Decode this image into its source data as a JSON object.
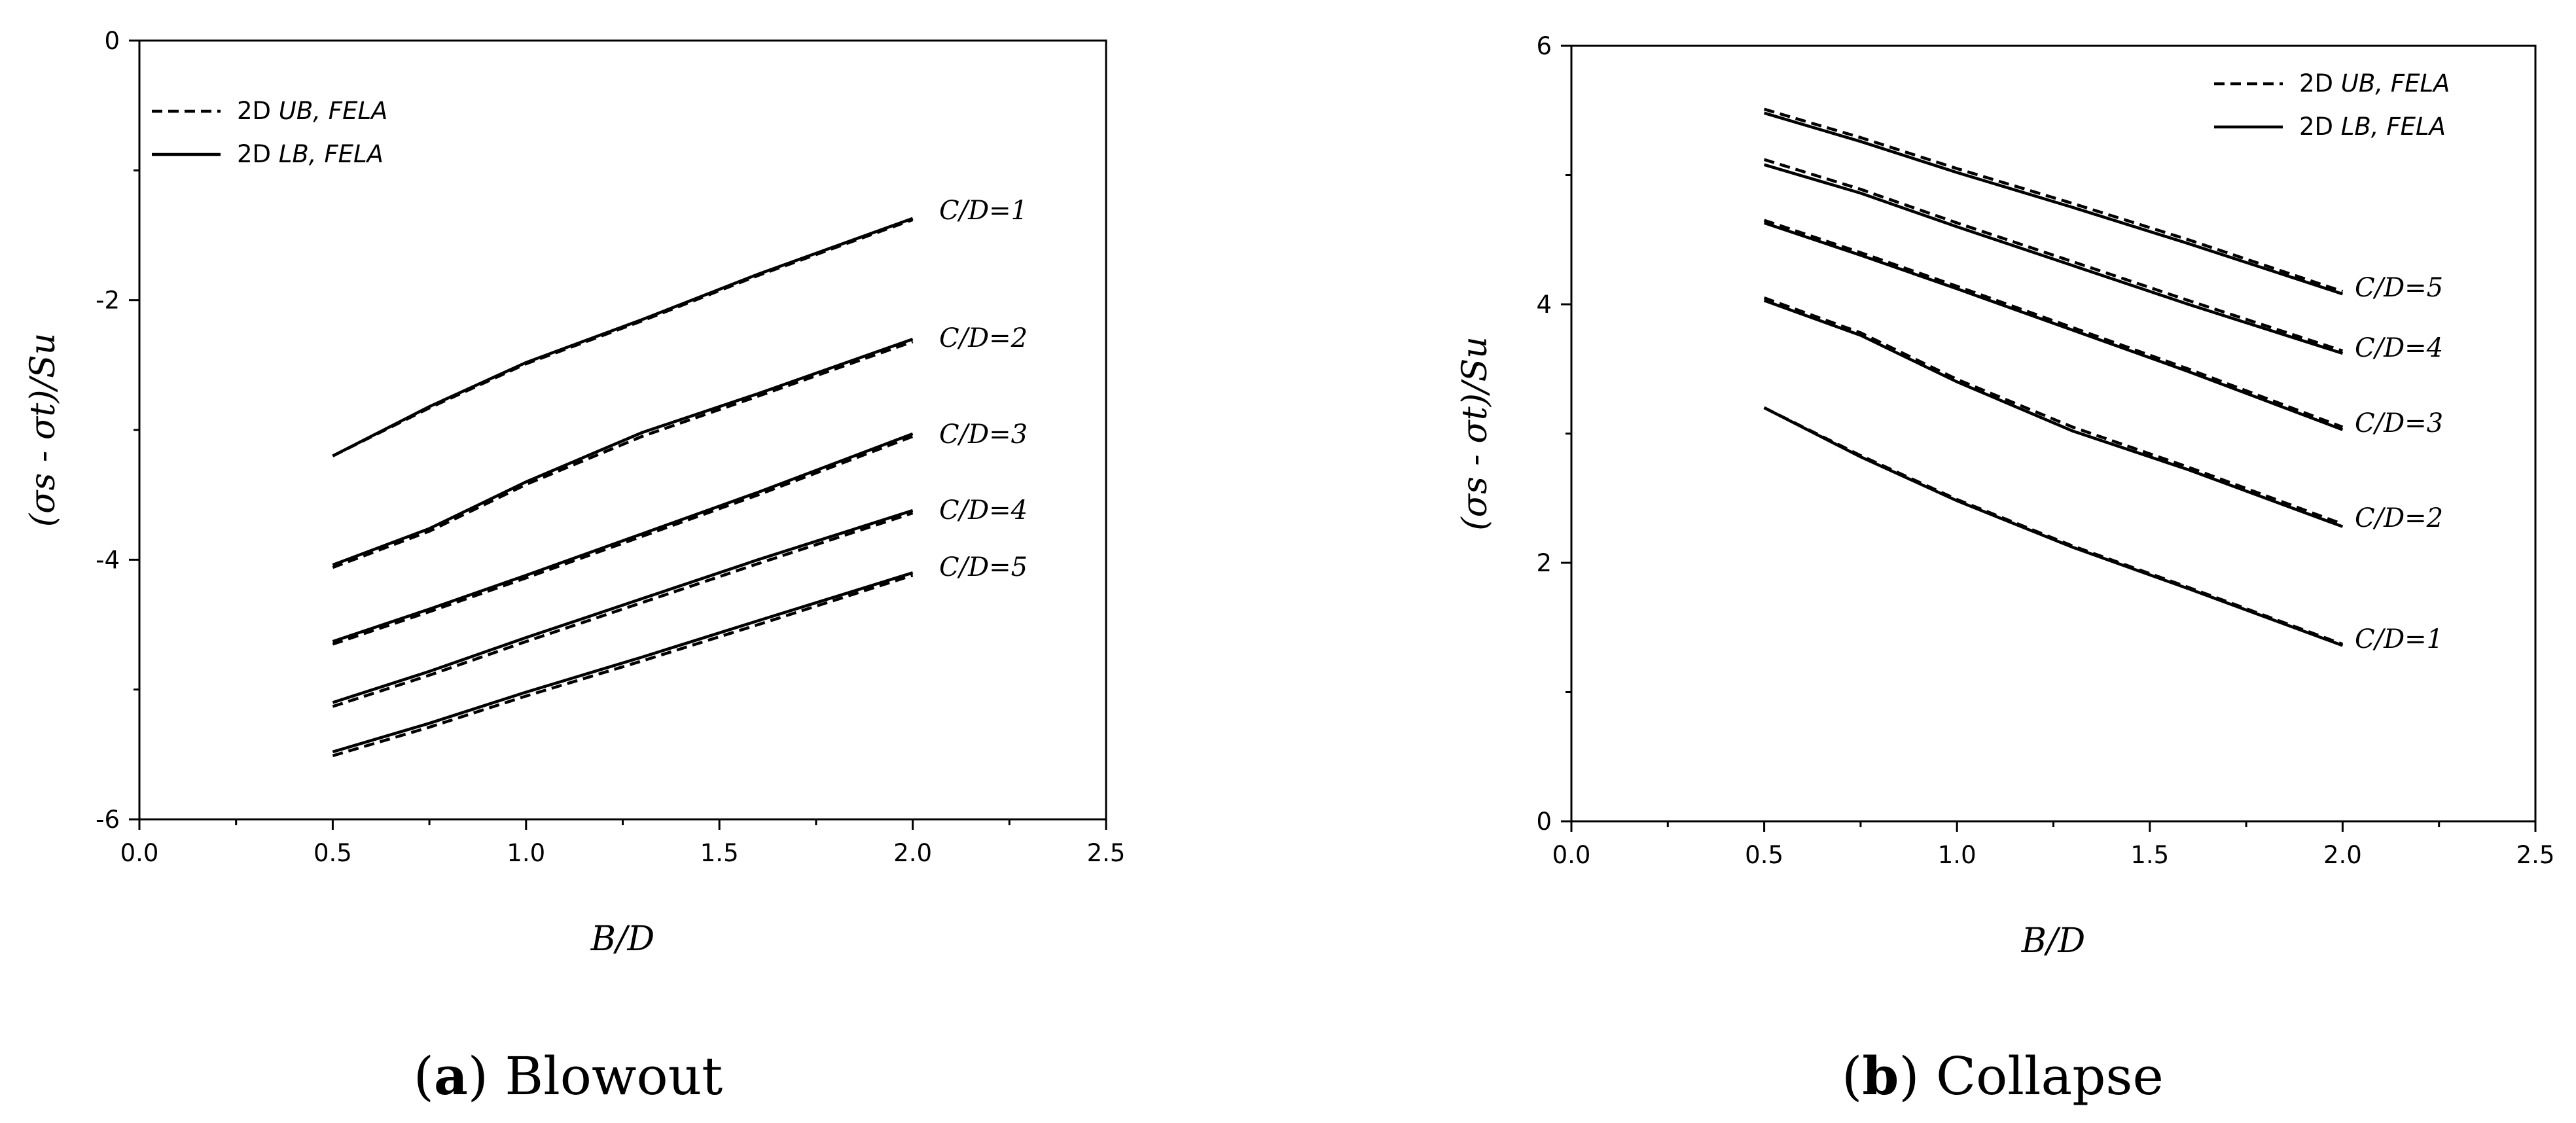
{
  "chart_data": [
    {
      "type": "line",
      "caption": {
        "letter": "a",
        "text": "Blowout"
      },
      "xlabel": "B/D",
      "ylabel": "(σs - σt)/Su",
      "xlim": [
        0.0,
        2.5
      ],
      "ylim": [
        -6,
        0
      ],
      "xticks": [
        "0.0",
        "0.5",
        "1.0",
        "1.5",
        "2.0",
        "2.5"
      ],
      "yticks": [
        "0",
        "-2",
        "-4",
        "-6"
      ],
      "legend_position": "top-left",
      "legend": [
        {
          "style": "dashed",
          "prefix": "2D",
          "text": "UB, FELA"
        },
        {
          "style": "solid",
          "prefix": "2D",
          "text": "LB, FELA"
        }
      ],
      "x": [
        0.5,
        0.75,
        1.0,
        1.3,
        1.6,
        2.0
      ],
      "curves": [
        {
          "label": "C/D=1",
          "lb": [
            -3.2,
            -2.82,
            -2.48,
            -2.15,
            -1.8,
            -1.37
          ],
          "ub": [
            -3.2,
            -2.83,
            -2.49,
            -2.16,
            -1.81,
            -1.38
          ]
        },
        {
          "label": "C/D=2",
          "lb": [
            -4.04,
            -3.76,
            -3.4,
            -3.02,
            -2.72,
            -2.3
          ],
          "ub": [
            -4.06,
            -3.78,
            -3.42,
            -3.05,
            -2.74,
            -2.32
          ]
        },
        {
          "label": "C/D=3",
          "lb": [
            -4.63,
            -4.38,
            -4.12,
            -3.8,
            -3.48,
            -3.03
          ],
          "ub": [
            -4.65,
            -4.4,
            -4.14,
            -3.82,
            -3.5,
            -3.05
          ]
        },
        {
          "label": "C/D=4",
          "lb": [
            -5.1,
            -4.86,
            -4.6,
            -4.3,
            -4.0,
            -3.62
          ],
          "ub": [
            -5.13,
            -4.89,
            -4.63,
            -4.33,
            -4.03,
            -3.64
          ]
        },
        {
          "label": "C/D=5",
          "lb": [
            -5.48,
            -5.26,
            -5.02,
            -4.75,
            -4.47,
            -4.1
          ],
          "ub": [
            -5.51,
            -5.29,
            -5.05,
            -4.78,
            -4.5,
            -4.12
          ]
        }
      ]
    },
    {
      "type": "line",
      "caption": {
        "letter": "b",
        "text": "Collapse"
      },
      "xlabel": "B/D",
      "ylabel": "(σs - σt)/Su",
      "xlim": [
        0.0,
        2.5
      ],
      "ylim": [
        0,
        6
      ],
      "xticks": [
        "0.0",
        "0.5",
        "1.0",
        "1.5",
        "2.0",
        "2.5"
      ],
      "yticks": [
        "0",
        "2",
        "4",
        "6"
      ],
      "legend_position": "top-right",
      "legend": [
        {
          "style": "dashed",
          "prefix": "2D",
          "text": "UB, FELA"
        },
        {
          "style": "solid",
          "prefix": "2D",
          "text": "LB, FELA"
        }
      ],
      "x": [
        0.5,
        0.75,
        1.0,
        1.3,
        1.6,
        2.0
      ],
      "curves": [
        {
          "label": "C/D=5",
          "lb": [
            5.48,
            5.26,
            5.02,
            4.75,
            4.47,
            4.08
          ],
          "ub": [
            5.51,
            5.29,
            5.05,
            4.78,
            4.5,
            4.1
          ]
        },
        {
          "label": "C/D=4",
          "lb": [
            5.08,
            4.86,
            4.6,
            4.3,
            4.0,
            3.62
          ],
          "ub": [
            5.12,
            4.89,
            4.63,
            4.33,
            4.03,
            3.64
          ]
        },
        {
          "label": "C/D=3",
          "lb": [
            4.63,
            4.38,
            4.12,
            3.8,
            3.48,
            3.03
          ],
          "ub": [
            4.65,
            4.4,
            4.14,
            3.82,
            3.5,
            3.05
          ]
        },
        {
          "label": "C/D=2",
          "lb": [
            4.03,
            3.76,
            3.4,
            3.02,
            2.72,
            2.28
          ],
          "ub": [
            4.05,
            3.78,
            3.42,
            3.05,
            2.74,
            2.3
          ]
        },
        {
          "label": "C/D=1",
          "lb": [
            3.2,
            2.82,
            2.48,
            2.12,
            1.8,
            1.36
          ],
          "ub": [
            3.2,
            2.83,
            2.49,
            2.13,
            1.81,
            1.37
          ]
        }
      ]
    }
  ]
}
